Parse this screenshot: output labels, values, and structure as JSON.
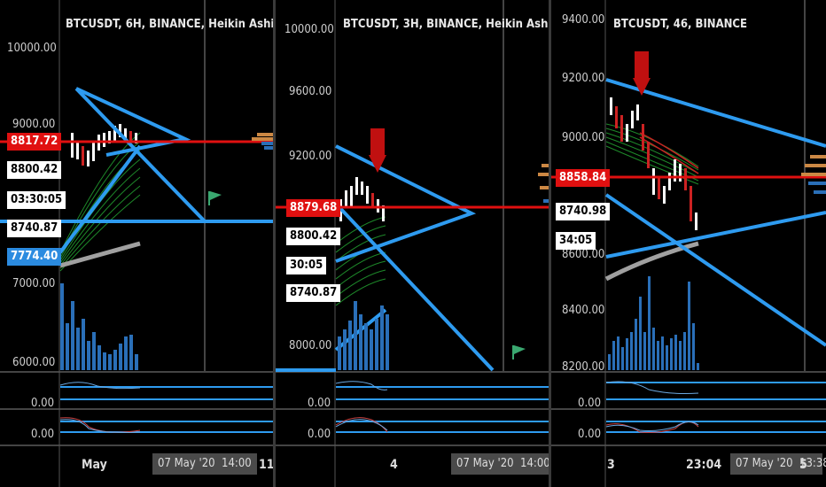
{
  "panels": [
    {
      "title": "BTCUSDT, 6H, BINANCE, Heikin Ashi",
      "price_labels": [
        "10000.00",
        "9000.00",
        "7000.00",
        "6000.00"
      ],
      "boxes": [
        "8817.72",
        "8800.42",
        "03:30:05",
        "8740.87",
        "7774.40"
      ],
      "osc_labels": [
        "0.00",
        "0.00"
      ],
      "x_labels": [
        "May",
        "5"
      ],
      "x_gray": [
        "07 May '20",
        "14:00"
      ],
      "x_right": "11"
    },
    {
      "title": "BTCUSDT, 3H, BINANCE, Heikin Ashi",
      "price_labels": [
        "10000.00",
        "9600.00",
        "9200.00",
        "8000.00"
      ],
      "boxes": [
        "8879.68",
        "8800.42",
        "30:05",
        "8740.87"
      ],
      "osc_labels": [
        "0.00",
        "0.00"
      ],
      "x_labels": [
        "4"
      ],
      "x_gray": [
        "07 May '20",
        "14:00"
      ]
    },
    {
      "title": "BTCUSDT, 46, BINANCE",
      "price_labels": [
        "9400.00",
        "9200.00",
        "9000.00",
        "8600.00",
        "8400.00",
        "8200.00"
      ],
      "boxes": [
        "8858.84",
        "8740.98",
        "34:05"
      ],
      "osc_labels": [
        "0.00",
        "0.00"
      ],
      "x_labels": [
        "3",
        "23:04",
        "5"
      ],
      "x_gray": [
        "07 May '20",
        "13:38"
      ]
    }
  ],
  "colors": {
    "background": "#000000",
    "trendline": "#2e9bf0",
    "price_line": "#e01010",
    "candle_up": "#ffffff",
    "candle_down": "#cc2222",
    "ribbon": "#1e8a2a",
    "volume": "#2a6fb8",
    "moving_avg": "#a0a0a0",
    "signal_arrow": "#c01010",
    "flag": "#3aa870"
  },
  "icons": [
    "flag-icon",
    "sell-arrow-icon"
  ]
}
